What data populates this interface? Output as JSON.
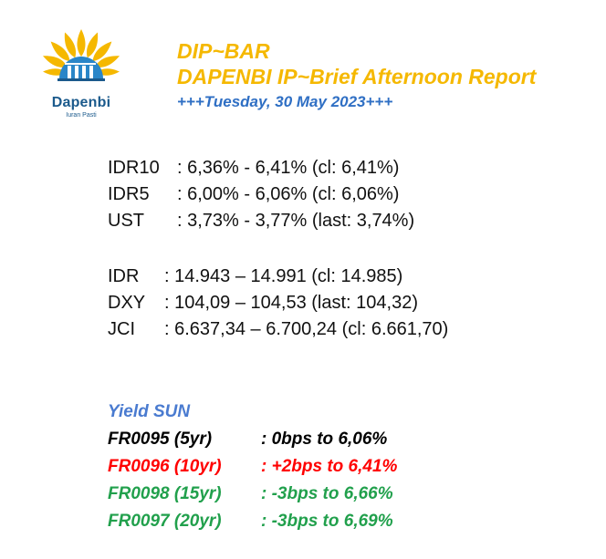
{
  "logo": {
    "name": "Dapenbi",
    "tagline": "Iuran Pasti"
  },
  "header": {
    "title": "DIP~BAR",
    "subtitle": "DAPENBI IP~Brief Afternoon Report",
    "date": "+++Tuesday, 30 May 2023+++"
  },
  "rates": [
    {
      "label": "IDR10",
      "value": ": 6,36% - 6,41% (cl: 6,41%)"
    },
    {
      "label": "IDR5",
      "value": ": 6,00% - 6,06% (cl: 6,06%)"
    },
    {
      "label": "UST",
      "value": ": 3,73% - 3,77% (last: 3,74%)"
    }
  ],
  "market": [
    {
      "label": "IDR",
      "value": ": 14.943 – 14.991 (cl: 14.985)"
    },
    {
      "label": "DXY",
      "value": ": 104,09 – 104,53 (last: 104,32)"
    },
    {
      "label": "JCI",
      "value": ": 6.637,34 – 6.700,24 (cl: 6.661,70)"
    }
  ],
  "yield": {
    "heading": "Yield SUN",
    "items": [
      {
        "bond": "FR0095 (5yr)",
        "change": ": 0bps to 6,06%",
        "color": "#000000"
      },
      {
        "bond": "FR0096 (10yr)",
        "change": ": +2bps to 6,41%",
        "color": "#ff0000"
      },
      {
        "bond": "FR0098 (15yr)",
        "change": ": -3bps to 6,66%",
        "color": "#21a04c"
      },
      {
        "bond": "FR0097 (20yr)",
        "change": ": -3bps to 6,69%",
        "color": "#21a04c"
      }
    ]
  },
  "colors": {
    "accent_yellow": "#f5b800",
    "accent_blue": "#2f6fc4",
    "logo_blue": "#1b5a8c"
  }
}
